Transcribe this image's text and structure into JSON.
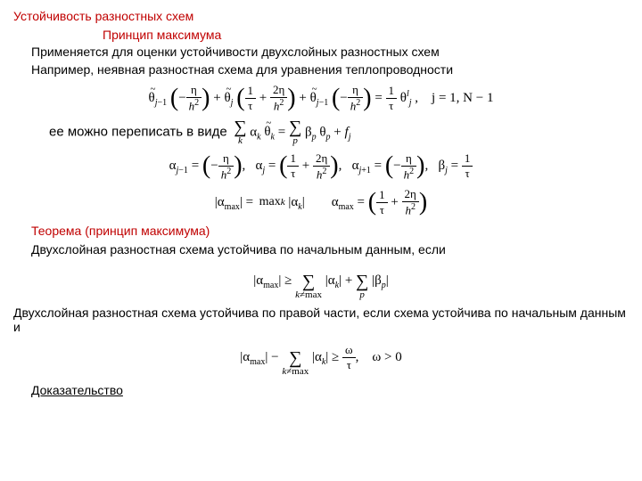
{
  "header": "Устойчивость разностных схем",
  "subheader": "Принцип максимума",
  "intro1": "Применяется для оценки устойчивости двухслойных разностных схем",
  "intro2": "Например, неявная разностная схема для уравнения теплопроводности",
  "eq1_range": "j = 1, N − 1",
  "rewrite": "ее можно переписать в виде",
  "theorem_title": "Теорема (принцип максимума)",
  "theorem_body": "Двухслойная разностная схема устойчива по начальным данным, если",
  "rhs_stability": "Двухслойная разностная схема устойчива по правой части, если схема устойчива по начальным данным и",
  "omega_cond": "ω > 0",
  "proof": "Доказательство",
  "colors": {
    "accent": "#c00000",
    "text": "#000000",
    "bg": "#ffffff"
  },
  "math": {
    "eta": "η",
    "theta": "θ",
    "tau": "τ",
    "alpha": "α",
    "beta": "β",
    "omega": "ω",
    "h2": "h²"
  }
}
